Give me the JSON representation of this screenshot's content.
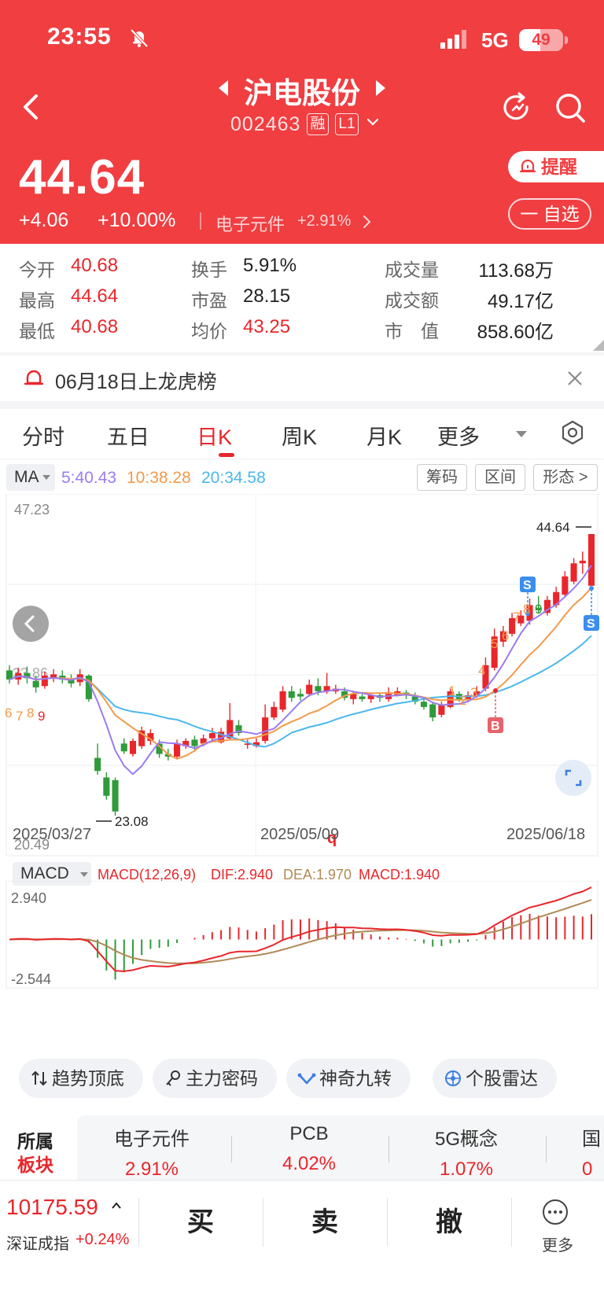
{
  "status_bar": {
    "time": "23:55",
    "network": "5G",
    "battery": "49",
    "battery_level": 0.49
  },
  "header": {
    "stock_name": "沪电股份",
    "stock_code": "002463",
    "margin_tag": "融",
    "level_tag": "L1",
    "price": "44.64",
    "change": "+4.06",
    "change_pct": "+10.00%",
    "sector_name": "电子元件",
    "sector_pct": "+2.91%",
    "alert_label": "提醒",
    "watch_label": "一 自选"
  },
  "stats": [
    {
      "label": "今开",
      "value": "40.68",
      "red": true
    },
    {
      "label": "最高",
      "value": "44.64",
      "red": true
    },
    {
      "label": "最低",
      "value": "40.68",
      "red": true
    },
    {
      "label": "换手",
      "value": "5.91%",
      "red": false
    },
    {
      "label": "市盈",
      "value": "28.15",
      "red": false
    },
    {
      "label": "均价",
      "value": "43.25",
      "red": true
    },
    {
      "label": "成交量",
      "value": "113.68万",
      "red": false
    },
    {
      "label": "成交额",
      "value": "49.17亿",
      "red": false
    },
    {
      "label": "市　值",
      "value": "858.60亿",
      "red": false
    }
  ],
  "notice": {
    "text": "06月18日上龙虎榜"
  },
  "tabs": [
    {
      "label": "分时"
    },
    {
      "label": "五日"
    },
    {
      "label": "日K"
    },
    {
      "label": "周K"
    },
    {
      "label": "月K"
    },
    {
      "label": "更多"
    }
  ],
  "chart": {
    "ma_selector": "MA",
    "ma5": "5:40.43",
    "ma10": "10:38.28",
    "ma20": "20:34.58",
    "buttons": [
      "筹码",
      "区间",
      "形态 >"
    ],
    "y_max_label": "47.23",
    "y_min_label": "20.49",
    "y_left_mark": "33.86",
    "high_label": "44.64",
    "low_label": "23.08",
    "dates": [
      "2025/03/27",
      "2025/05/09",
      "2025/06/18"
    ],
    "marker_q": "q",
    "signal_s": "S",
    "signal_b": "B",
    "macd_selector": "MACD",
    "macd_params": "MACD(12,26,9)",
    "dif": "DIF:2.940",
    "dea": "DEA:1.970",
    "macd": "MACD:1.940",
    "macd_max_label": "2.940",
    "macd_min_label": "-2.544",
    "colors": {
      "up": "#e8262b",
      "down": "#2f9b3a",
      "ma5": "#9b7cf0",
      "ma10": "#f39a4a",
      "ma20": "#4bb7ee",
      "dif": "#e8262b",
      "dea": "#b08a55"
    }
  },
  "chart_data": {
    "type": "candlestick",
    "dates_shown": [
      "2025/03/27",
      "2025/05/09",
      "2025/06/18"
    ],
    "ylim": [
      20.49,
      47.23
    ],
    "high": 44.64,
    "low": 23.08,
    "candles": [
      [
        34.2,
        33.5,
        34.6,
        33.2
      ],
      [
        33.5,
        34.0,
        34.4,
        33.1
      ],
      [
        34.0,
        33.6,
        34.5,
        33.2
      ],
      [
        33.4,
        32.9,
        33.8,
        32.5
      ],
      [
        33.0,
        33.8,
        34.1,
        32.8
      ],
      [
        33.6,
        33.9,
        34.3,
        33.3
      ],
      [
        33.8,
        33.5,
        34.2,
        33.2
      ],
      [
        33.5,
        33.2,
        33.9,
        32.9
      ],
      [
        33.3,
        33.9,
        34.3,
        33.0
      ],
      [
        33.8,
        32.0,
        33.9,
        31.8
      ],
      [
        27.5,
        26.5,
        28.6,
        26.2
      ],
      [
        26.0,
        24.6,
        26.4,
        24.3
      ],
      [
        25.8,
        23.4,
        26.0,
        23.08
      ],
      [
        28.6,
        28.0,
        29.0,
        27.8
      ],
      [
        27.8,
        28.8,
        29.0,
        27.6
      ],
      [
        28.4,
        29.6,
        29.9,
        28.2
      ],
      [
        28.8,
        29.4,
        29.7,
        28.5
      ],
      [
        28.6,
        27.8,
        28.9,
        27.5
      ],
      [
        27.8,
        27.6,
        28.2,
        27.3
      ],
      [
        27.6,
        28.6,
        28.9,
        27.4
      ],
      [
        28.4,
        28.8,
        29.0,
        28.2
      ],
      [
        28.9,
        28.4,
        29.2,
        28.1
      ],
      [
        28.6,
        29.0,
        29.3,
        28.4
      ],
      [
        29.0,
        29.4,
        29.8,
        28.8
      ],
      [
        28.7,
        29.5,
        29.8,
        28.6
      ],
      [
        29.0,
        30.4,
        31.7,
        28.9
      ],
      [
        30.0,
        29.4,
        30.4,
        29.2
      ],
      [
        28.5,
        28.6,
        28.9,
        28.2
      ],
      [
        28.4,
        28.7,
        29.0,
        28.3
      ],
      [
        28.8,
        30.6,
        31.6,
        28.6
      ],
      [
        30.6,
        31.4,
        31.8,
        30.4
      ],
      [
        31.2,
        32.6,
        33.0,
        31.0
      ],
      [
        32.6,
        32.1,
        33.0,
        31.8
      ],
      [
        32.4,
        32.2,
        32.8,
        31.9
      ],
      [
        32.4,
        33.1,
        33.5,
        32.2
      ],
      [
        33.0,
        32.6,
        33.6,
        32.3
      ],
      [
        32.6,
        33.0,
        34.0,
        32.4
      ],
      [
        32.6,
        32.8,
        33.1,
        32.4
      ],
      [
        32.6,
        32.1,
        32.9,
        31.9
      ],
      [
        32.0,
        32.4,
        32.6,
        31.6
      ],
      [
        32.2,
        32.0,
        32.4,
        31.8
      ],
      [
        32.0,
        32.3,
        32.5,
        31.7
      ],
      [
        32.3,
        32.1,
        32.5,
        31.8
      ],
      [
        32.0,
        32.4,
        32.9,
        31.8
      ],
      [
        32.3,
        32.6,
        32.9,
        32.2
      ],
      [
        32.5,
        32.3,
        32.7,
        32.0
      ],
      [
        32.2,
        31.8,
        32.5,
        31.6
      ],
      [
        31.8,
        31.4,
        32.0,
        31.2
      ],
      [
        31.6,
        30.6,
        31.8,
        30.3
      ],
      [
        30.8,
        31.6,
        31.8,
        30.6
      ],
      [
        31.4,
        32.6,
        32.8,
        31.3
      ],
      [
        32.4,
        32.0,
        32.6,
        31.8
      ],
      [
        32.0,
        32.3,
        32.6,
        31.8
      ],
      [
        32.2,
        32.6,
        33.0,
        32.1
      ],
      [
        32.8,
        34.6,
        35.2,
        32.6
      ],
      [
        34.4,
        36.8,
        37.4,
        34.2
      ],
      [
        36.4,
        37.2,
        37.6,
        36.0
      ],
      [
        37.0,
        38.2,
        38.6,
        36.8
      ],
      [
        37.8,
        38.4,
        38.8,
        37.6
      ],
      [
        38.0,
        39.2,
        39.7,
        37.7
      ],
      [
        39.0,
        38.8,
        39.9,
        38.6
      ],
      [
        38.6,
        39.6,
        39.9,
        38.4
      ],
      [
        39.2,
        40.2,
        40.6,
        39.0
      ],
      [
        40.0,
        41.4,
        41.8,
        39.8
      ],
      [
        41.0,
        42.4,
        42.8,
        40.8
      ],
      [
        42.4,
        42.6,
        43.3,
        41.6
      ],
      [
        40.68,
        44.64,
        44.64,
        40.68
      ]
    ],
    "ma5_last": 40.43,
    "ma10_last": 38.28,
    "ma20_last": 34.58,
    "macd": {
      "params": "MACD(12,26,9)",
      "dif": 2.94,
      "dea": 1.97,
      "macd": 1.94,
      "ylim": [
        -2.544,
        2.94
      ]
    }
  },
  "tools": [
    {
      "label": "趋势顶底"
    },
    {
      "label": "主力密码"
    },
    {
      "label": "神奇九转"
    },
    {
      "label": "个股雷达"
    }
  ],
  "sectors": {
    "title_line1": "所属",
    "title_line2": "板块",
    "items": [
      {
        "name": "电子元件",
        "pct": "2.91%"
      },
      {
        "name": "PCB",
        "pct": "4.02%"
      },
      {
        "name": "5G概念",
        "pct": "1.07%"
      },
      {
        "name": "国",
        "pct": "0"
      }
    ]
  },
  "bottom_bar": {
    "index_value": "10175.59",
    "index_name": "深证成指",
    "index_change": "+0.24%",
    "buy_label": "买",
    "sell_label": "卖",
    "cancel_label": "撤",
    "more_label": "更多"
  }
}
